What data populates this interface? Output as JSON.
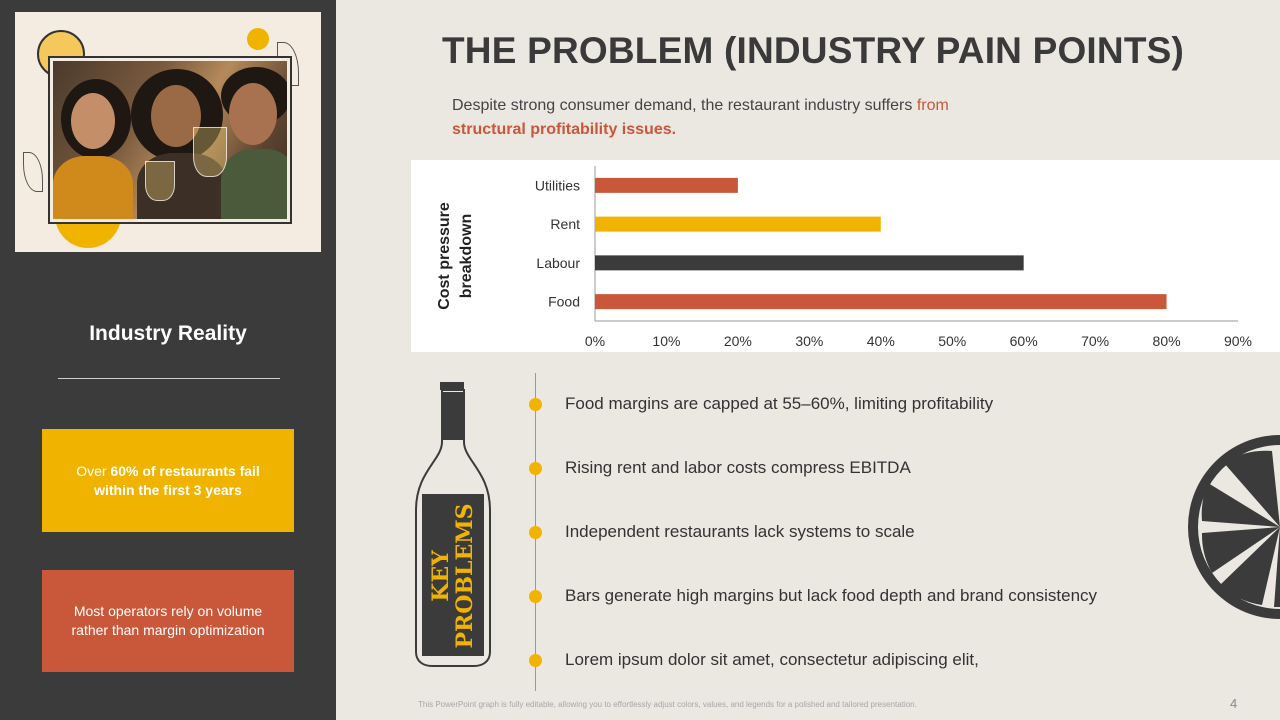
{
  "slide": {
    "title": "THE PROBLEM (INDUSTRY PAIN POINTS)",
    "subtitle_plain": "Despite strong consumer demand, the restaurant industry suffers ",
    "subtitle_highlight": "from",
    "subtitle_bold": "structural profitability issues.",
    "footnote": "This PowerPoint graph is fully editable, allowing you to effortlessly adjust colors, values, and legends for a polished and tailored presentation.",
    "page_number": "4"
  },
  "sidebar": {
    "photo_alt": "Friends toasting with drinks",
    "heading": "Industry Reality",
    "card_yellow": {
      "prefix": "Over ",
      "bold": "60% of restaurants fail within the first 3 years"
    },
    "card_orange": "Most operators rely on volume rather than margin optimization"
  },
  "bottle": {
    "line1": "KEY",
    "line2": "PROBLEMS"
  },
  "problems": [
    "Food margins are capped at 55–60%, limiting profitability",
    "Rising rent and labor costs compress EBITDA",
    "Independent restaurants lack systems to scale",
    "Bars generate high margins but lack food depth and brand consistency",
    "Lorem ipsum dolor sit amet, consectetur adipiscing elit,"
  ],
  "colors": {
    "dark": "#3b3b3b",
    "yellow": "#f0b400",
    "orange": "#c9573a",
    "background": "#ebe7e1"
  },
  "chart_data": {
    "type": "bar",
    "orientation": "horizontal",
    "categories": [
      "Utilities",
      "Rent",
      "Labour",
      "Food"
    ],
    "values": [
      0.2,
      0.4,
      0.6,
      0.8
    ],
    "bar_colors": [
      "#c9573a",
      "#f0b400",
      "#3b3b3b",
      "#c9573a"
    ],
    "ylabel": "Cost pressure breakdown",
    "xlabel": "",
    "xlim": [
      0,
      0.9
    ],
    "xticks": [
      "0%",
      "10%",
      "20%",
      "30%",
      "40%",
      "50%",
      "60%",
      "70%",
      "80%",
      "90%"
    ],
    "grid": false,
    "legend": "none"
  }
}
